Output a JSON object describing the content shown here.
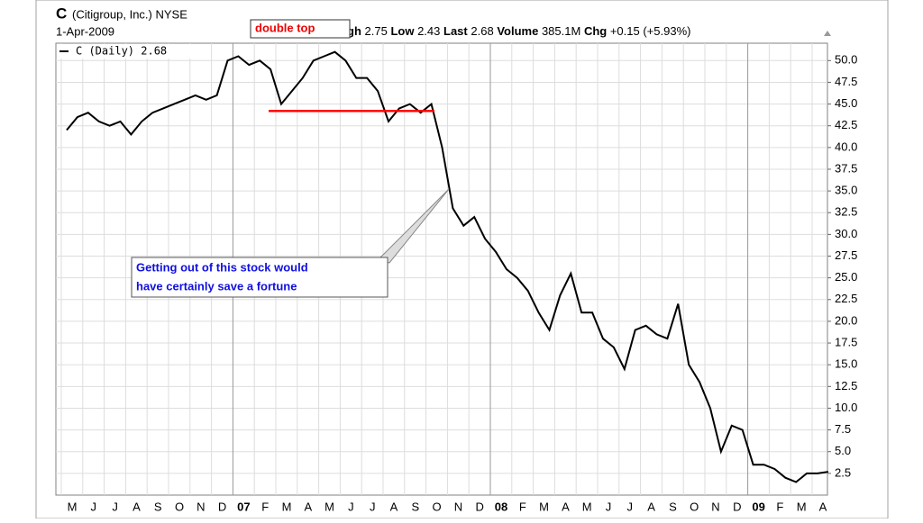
{
  "header": {
    "symbol": "C",
    "company": "(Citigroup, Inc.) NYSE",
    "date": "1-Apr-2009",
    "stats": [
      {
        "label": "High",
        "value": "2.75"
      },
      {
        "label": "Low",
        "value": "2.43"
      },
      {
        "label": "Last",
        "value": "2.68"
      },
      {
        "label": "Volume",
        "value": "385.1M"
      },
      {
        "label": "Chg",
        "value": "+0.15 (+5.93%)"
      }
    ]
  },
  "chart_data": {
    "type": "line",
    "legend": "C (Daily) 2.68",
    "annotations": {
      "double_top": "double top",
      "note": [
        "Getting out of this stock would",
        "have certainly save a fortune"
      ],
      "double_top_level": 44.2,
      "double_top_color": "#ff0000"
    },
    "categories": [
      "M",
      null,
      "J",
      null,
      "J",
      null,
      "A",
      null,
      "S",
      null,
      "O",
      null,
      "N",
      null,
      "D",
      null,
      "07",
      null,
      "F",
      null,
      "M",
      null,
      "A",
      null,
      "M",
      null,
      "J",
      null,
      "J",
      null,
      "A",
      null,
      "S",
      null,
      "O",
      null,
      "N",
      null,
      "D",
      null,
      "08",
      null,
      "F",
      null,
      "M",
      null,
      "A",
      null,
      "M",
      null,
      "J",
      null,
      "J",
      null,
      "A",
      null,
      "S",
      null,
      "O",
      null,
      "N",
      null,
      "D",
      null,
      "09",
      null,
      "F",
      null,
      "M",
      null,
      "A",
      null
    ],
    "series": [
      {
        "name": "C (Daily)",
        "color": "#000000",
        "values": [
          42,
          43.5,
          44,
          43,
          42.5,
          43,
          41.5,
          43,
          44,
          44.5,
          45,
          45.5,
          46,
          45.5,
          46,
          50,
          50.5,
          49.5,
          50,
          49,
          45,
          46.5,
          48,
          50,
          50.5,
          51,
          50,
          48,
          48,
          46.5,
          43,
          44.5,
          45,
          44,
          45,
          40,
          33,
          31,
          32,
          29.5,
          28,
          26,
          25,
          23.5,
          21,
          19,
          23,
          25.5,
          21,
          21,
          18,
          17,
          14.5,
          19,
          19.5,
          18.5,
          18,
          22,
          15,
          13,
          10,
          5,
          8,
          7.5,
          3.5,
          3.5,
          3,
          2,
          1.5,
          2.5,
          2.5,
          2.68
        ]
      }
    ],
    "ylim": [
      0,
      52
    ],
    "yticks": [
      {
        "value": 2.5,
        "label": "2.5"
      },
      {
        "value": 5,
        "label": "5.0"
      },
      {
        "value": 7.5,
        "label": "7.5"
      },
      {
        "value": 10,
        "label": "10.0"
      },
      {
        "value": 12.5,
        "label": "12.5"
      },
      {
        "value": 15,
        "label": "15.0"
      },
      {
        "value": 17.5,
        "label": "17.5"
      },
      {
        "value": 20,
        "label": "20.0"
      },
      {
        "value": 22.5,
        "label": "22.5"
      },
      {
        "value": 25,
        "label": "25.0"
      },
      {
        "value": 27.5,
        "label": "27.5"
      },
      {
        "value": 30,
        "label": "30.0"
      },
      {
        "value": 32.5,
        "label": "32.5"
      },
      {
        "value": 35,
        "label": "35.0"
      },
      {
        "value": 37.5,
        "label": "37.5"
      },
      {
        "value": 40,
        "label": "40.0"
      },
      {
        "value": 42.5,
        "label": "42.5"
      },
      {
        "value": 45,
        "label": "45.0"
      },
      {
        "value": 47.5,
        "label": "47.5"
      },
      {
        "value": 50,
        "label": "50.0"
      }
    ],
    "grid": true
  }
}
